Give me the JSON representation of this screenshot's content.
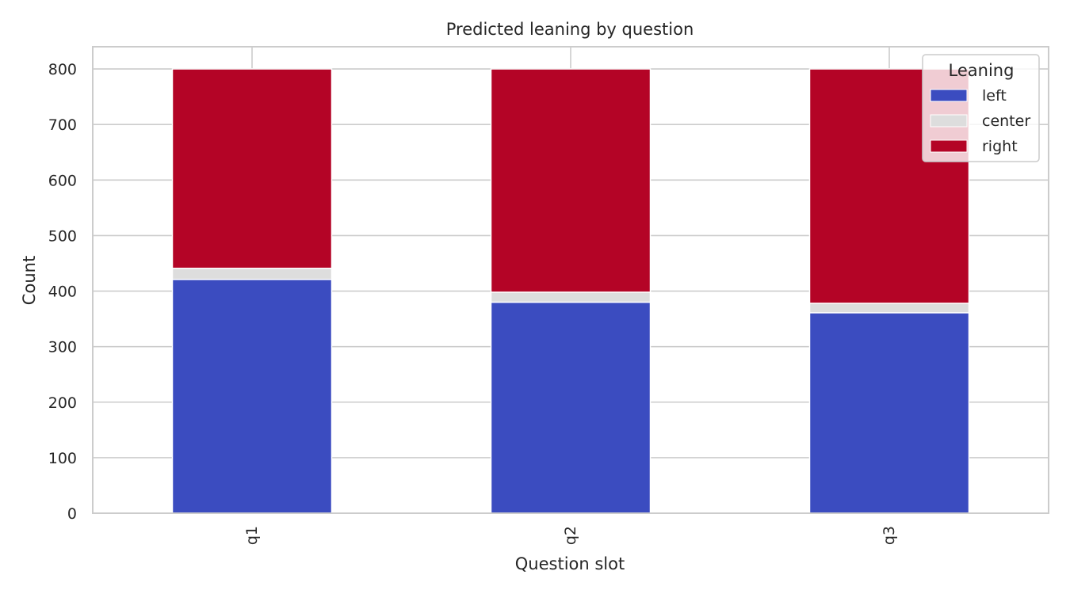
{
  "chart_data": {
    "type": "bar",
    "stacked": true,
    "title": "Predicted leaning by question",
    "xlabel": "Question slot",
    "ylabel": "Count",
    "categories": [
      "q1",
      "q2",
      "q3"
    ],
    "series": [
      {
        "name": "left",
        "color": "#3b4cc0",
        "values": [
          421,
          380,
          361
        ]
      },
      {
        "name": "center",
        "color": "#dddddd",
        "values": [
          20,
          18,
          17
        ]
      },
      {
        "name": "right",
        "color": "#b40426",
        "values": [
          359,
          402,
          422
        ]
      }
    ],
    "ylim": [
      0,
      840
    ],
    "yticks": [
      0,
      100,
      200,
      300,
      400,
      500,
      600,
      700,
      800
    ],
    "grid": true,
    "legend": {
      "title": "Leaning",
      "placement": "top-right"
    }
  }
}
